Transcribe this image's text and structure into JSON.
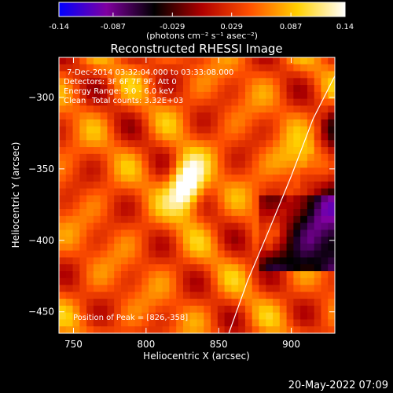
{
  "colorbar": {
    "ticks": [
      -0.14,
      -0.087,
      -0.029,
      0.029,
      0.087,
      0.14
    ],
    "tick_labels": [
      "-0.14",
      "-0.087",
      "-0.029",
      "0.029",
      "0.087",
      "0.14"
    ],
    "units_label": "(photons cm⁻² s⁻¹ asec⁻²)",
    "colormap": [
      "#0000ff",
      "#8000a0",
      "#000000",
      "#b00000",
      "#ff5000",
      "#ffd000",
      "#ffffff"
    ]
  },
  "chart_data": {
    "type": "heatmap",
    "title": "Reconstructed RHESSI Image",
    "xlabel": "Heliocentric X (arcsec)",
    "ylabel": "Heliocentric Y (arcsec)",
    "xlim": [
      740,
      930
    ],
    "ylim": [
      -465,
      -272
    ],
    "xticks": [
      750,
      800,
      850,
      900
    ],
    "yticks": [
      -300,
      -350,
      -400,
      -450
    ],
    "xtick_labels": [
      "750",
      "800",
      "850",
      "900"
    ],
    "ytick_labels": [
      "−300",
      "−350",
      "−400",
      "−450"
    ],
    "value_range": [
      -0.14,
      0.14
    ],
    "peak": {
      "x": 826,
      "y": -358
    },
    "limb_curve": {
      "x": [
        857,
        870,
        885,
        900,
        915,
        930
      ],
      "y": [
        -465,
        -428,
        -392,
        -355,
        -315,
        -285
      ]
    },
    "annotations": {
      "time_range": "7-Dec-2014 03:32:04.000 to 03:33:08.000",
      "detectors": "Detectors: 3F 6F 7F 9F, Att 0",
      "energy_range": "Energy Range: 3.0 - 6.0 keV",
      "clean_label": "Clean",
      "total_counts": "Total counts: 3.32E+03",
      "peak_label": "Position of Peak = [826,-358]"
    }
  },
  "footer": {
    "date": "20-May-2022 07:09"
  }
}
